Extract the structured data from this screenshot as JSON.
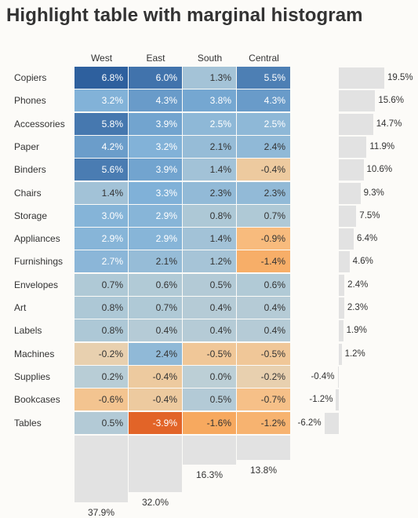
{
  "title": "Highlight table with marginal histogram",
  "colors": {
    "background": "#fcfbf8",
    "histogram_bar": "#e2e2e2",
    "text_light": "#ffffff",
    "text_dark": "#333333"
  },
  "chart_data": {
    "type": "heatmap",
    "title": "Highlight table with marginal histogram",
    "columns": [
      "West",
      "East",
      "South",
      "Central"
    ],
    "rows": [
      "Copiers",
      "Phones",
      "Accessories",
      "Paper",
      "Binders",
      "Chairs",
      "Storage",
      "Appliances",
      "Furnishings",
      "Envelopes",
      "Art",
      "Labels",
      "Machines",
      "Supplies",
      "Bookcases",
      "Tables"
    ],
    "values": [
      [
        6.8,
        6.0,
        1.3,
        5.5
      ],
      [
        3.2,
        4.3,
        3.8,
        4.3
      ],
      [
        5.8,
        3.9,
        2.5,
        2.5
      ],
      [
        4.2,
        3.2,
        2.1,
        2.4
      ],
      [
        5.6,
        3.9,
        1.4,
        -0.4
      ],
      [
        1.4,
        3.3,
        2.3,
        2.3
      ],
      [
        3.0,
        2.9,
        0.8,
        0.7
      ],
      [
        2.9,
        2.9,
        1.4,
        -0.9
      ],
      [
        2.7,
        2.1,
        1.2,
        -1.4
      ],
      [
        0.7,
        0.6,
        0.5,
        0.6
      ],
      [
        0.8,
        0.7,
        0.4,
        0.4
      ],
      [
        0.8,
        0.4,
        0.4,
        0.4
      ],
      [
        -0.2,
        2.4,
        -0.5,
        -0.5
      ],
      [
        0.2,
        -0.4,
        0.0,
        -0.2
      ],
      [
        -0.6,
        -0.4,
        0.5,
        -0.7
      ],
      [
        0.5,
        -3.9,
        -1.6,
        -1.2
      ]
    ],
    "cell_labels": [
      [
        "6.8%",
        "6.0%",
        "1.3%",
        "5.5%"
      ],
      [
        "3.2%",
        "4.3%",
        "3.8%",
        "4.3%"
      ],
      [
        "5.8%",
        "3.9%",
        "2.5%",
        "2.5%"
      ],
      [
        "4.2%",
        "3.2%",
        "2.1%",
        "2.4%"
      ],
      [
        "5.6%",
        "3.9%",
        "1.4%",
        "-0.4%"
      ],
      [
        "1.4%",
        "3.3%",
        "2.3%",
        "2.3%"
      ],
      [
        "3.0%",
        "2.9%",
        "0.8%",
        "0.7%"
      ],
      [
        "2.9%",
        "2.9%",
        "1.4%",
        "-0.9%"
      ],
      [
        "2.7%",
        "2.1%",
        "1.2%",
        "-1.4%"
      ],
      [
        "0.7%",
        "0.6%",
        "0.5%",
        "0.6%"
      ],
      [
        "0.8%",
        "0.7%",
        "0.4%",
        "0.4%"
      ],
      [
        "0.8%",
        "0.4%",
        "0.4%",
        "0.4%"
      ],
      [
        "-0.2%",
        "2.4%",
        "-0.5%",
        "-0.5%"
      ],
      [
        "0.2%",
        "-0.4%",
        "0.0%",
        "-0.2%"
      ],
      [
        "-0.6%",
        "-0.4%",
        "0.5%",
        "-0.7%"
      ],
      [
        "0.5%",
        "-3.9%",
        "-1.6%",
        "-1.2%"
      ]
    ],
    "row_totals": [
      19.5,
      15.6,
      14.7,
      11.9,
      10.6,
      9.3,
      7.5,
      6.4,
      4.6,
      2.4,
      2.3,
      1.9,
      1.2,
      -0.4,
      -1.2,
      -6.2
    ],
    "row_total_labels": [
      "19.5%",
      "15.6%",
      "14.7%",
      "11.9%",
      "10.6%",
      "9.3%",
      "7.5%",
      "6.4%",
      "4.6%",
      "2.4%",
      "2.3%",
      "1.9%",
      "1.2%",
      "-0.4%",
      "-1.2%",
      "-6.2%"
    ],
    "column_totals": [
      37.9,
      32.0,
      16.3,
      13.8
    ],
    "column_total_labels": [
      "37.9%",
      "32.0%",
      "16.3%",
      "13.8%"
    ],
    "color_scale": "diverging orange (negative) to blue (positive)",
    "legend": "none",
    "grid": false
  }
}
